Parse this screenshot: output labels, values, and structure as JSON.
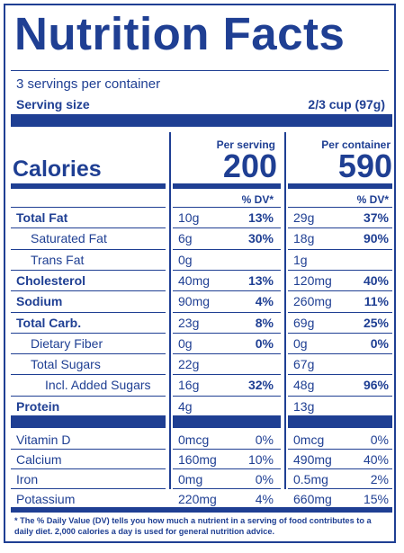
{
  "title": "Nutrition Facts",
  "servings_per_container": "3 servings per container",
  "serving_size_label": "Serving size",
  "serving_size_value": "2/3 cup (97g)",
  "columns": {
    "per_serving": "Per serving",
    "per_container": "Per container",
    "dv_label": "% DV*"
  },
  "calories": {
    "label": "Calories",
    "per_serving": "200",
    "per_container": "590"
  },
  "nutrients": [
    {
      "name": "Total Fat",
      "bold": true,
      "indent": 0,
      "s_amt": "10g",
      "s_dv": "13%",
      "c_amt": "29g",
      "c_dv": "37%"
    },
    {
      "name": "Saturated Fat",
      "bold": false,
      "indent": 1,
      "s_amt": "6g",
      "s_dv": "30%",
      "c_amt": "18g",
      "c_dv": "90%"
    },
    {
      "name": "Trans Fat",
      "bold": false,
      "indent": 1,
      "s_amt": "0g",
      "s_dv": "",
      "c_amt": "1g",
      "c_dv": ""
    },
    {
      "name": "Cholesterol",
      "bold": true,
      "indent": 0,
      "s_amt": "40mg",
      "s_dv": "13%",
      "c_amt": "120mg",
      "c_dv": "40%"
    },
    {
      "name": "Sodium",
      "bold": true,
      "indent": 0,
      "s_amt": "90mg",
      "s_dv": "4%",
      "c_amt": "260mg",
      "c_dv": "11%"
    },
    {
      "name": "Total Carb.",
      "bold": true,
      "indent": 0,
      "s_amt": "23g",
      "s_dv": "8%",
      "c_amt": "69g",
      "c_dv": "25%"
    },
    {
      "name": "Dietary Fiber",
      "bold": false,
      "indent": 1,
      "s_amt": "0g",
      "s_dv": "0%",
      "c_amt": "0g",
      "c_dv": "0%"
    },
    {
      "name": "Total Sugars",
      "bold": false,
      "indent": 1,
      "s_amt": "22g",
      "s_dv": "",
      "c_amt": "67g",
      "c_dv": ""
    },
    {
      "name": "Incl. Added Sugars",
      "bold": false,
      "indent": 2,
      "s_amt": "16g",
      "s_dv": "32%",
      "c_amt": "48g",
      "c_dv": "96%"
    },
    {
      "name": "Protein",
      "bold": true,
      "indent": 0,
      "s_amt": "4g",
      "s_dv": "",
      "c_amt": "13g",
      "c_dv": ""
    }
  ],
  "vitamins": [
    {
      "name": "Vitamin D",
      "s_amt": "0mcg",
      "s_dv": "0%",
      "c_amt": "0mcg",
      "c_dv": "0%"
    },
    {
      "name": "Calcium",
      "s_amt": "160mg",
      "s_dv": "10%",
      "c_amt": "490mg",
      "c_dv": "40%"
    },
    {
      "name": "Iron",
      "s_amt": "0mg",
      "s_dv": "0%",
      "c_amt": "0.5mg",
      "c_dv": "2%"
    },
    {
      "name": "Potassium",
      "s_amt": "220mg",
      "s_dv": "4%",
      "c_amt": "660mg",
      "c_dv": "15%"
    }
  ],
  "footnote": "* The % Daily Value (DV) tells you how much a nutrient in a serving of food contributes to a daily diet. 2,000 calories a day is used for general nutrition advice.",
  "colors": {
    "ink": "#1f3f93",
    "background": "#ffffff"
  }
}
